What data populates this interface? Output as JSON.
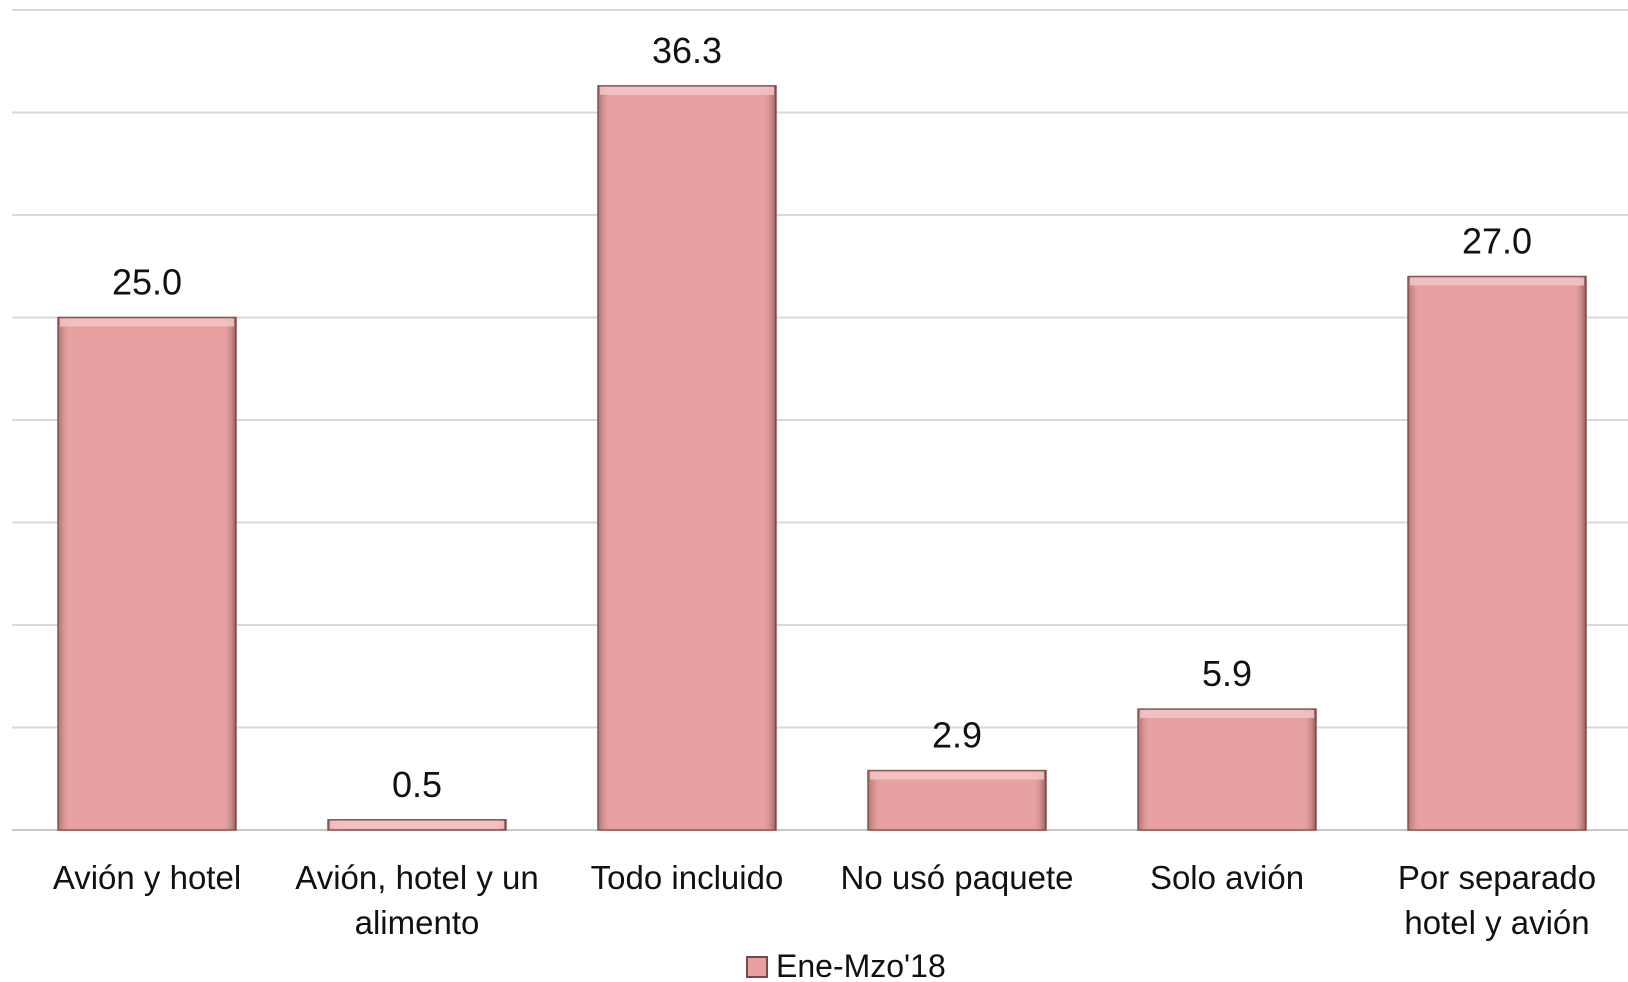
{
  "chart_data": {
    "type": "bar",
    "categories": [
      [
        "Avión y hotel"
      ],
      [
        "Avión, hotel y un",
        "alimento"
      ],
      [
        "Todo incluido"
      ],
      [
        "No usó paquete"
      ],
      [
        "Solo avión"
      ],
      [
        "Por separado",
        "hotel y avión"
      ]
    ],
    "series": [
      {
        "name": "Ene-Mzo'18",
        "values": [
          25.0,
          0.5,
          36.3,
          2.9,
          5.9,
          27.0
        ],
        "labels": [
          "25.0",
          "0.5",
          "36.3",
          "2.9",
          "5.9",
          "27.0"
        ],
        "color": "#e6a1a0"
      }
    ],
    "ylim": [
      0,
      40
    ],
    "grid": true,
    "y_tick_labels_visible": false,
    "legend_position": "bottom-center"
  }
}
